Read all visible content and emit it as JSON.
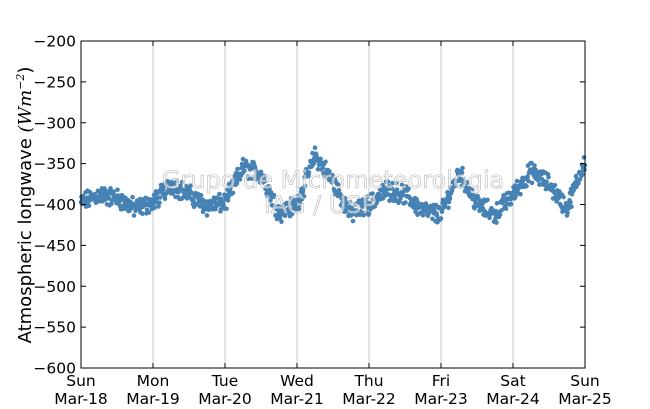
{
  "chart_data": {
    "type": "scatter",
    "ylabel_text": "Atmospheric longwave ",
    "ylabel_unit": "(Wm",
    "ylabel_exp": "−2",
    "ylabel_close": ")",
    "ylim": [
      -600,
      -200
    ],
    "yticks": [
      -200,
      -250,
      -300,
      -350,
      -400,
      -450,
      -500,
      -550,
      -600
    ],
    "ytick_labels": [
      "−200",
      "−250",
      "−300",
      "−350",
      "−400",
      "−450",
      "−500",
      "−550",
      "−600"
    ],
    "xlim_days": [
      0,
      7
    ],
    "xticks": [
      {
        "day": "Sun",
        "date": "Mar-18"
      },
      {
        "day": "Mon",
        "date": "Mar-19"
      },
      {
        "day": "Tue",
        "date": "Mar-20"
      },
      {
        "day": "Wed",
        "date": "Mar-21"
      },
      {
        "day": "Thu",
        "date": "Mar-22"
      },
      {
        "day": "Fri",
        "date": "Mar-23"
      },
      {
        "day": "Sat",
        "date": "Mar-24"
      },
      {
        "day": "Sun",
        "date": "Mar-25"
      }
    ],
    "grid": "vertical",
    "marker_color": "#4682b4",
    "series_trend": {
      "x": [
        0,
        0.25,
        0.5,
        0.75,
        1.0,
        1.25,
        1.5,
        1.75,
        2.0,
        2.25,
        2.5,
        2.75,
        3.0,
        3.25,
        3.5,
        3.75,
        4.0,
        4.25,
        4.5,
        4.75,
        5.0,
        5.25,
        5.5,
        5.75,
        6.0,
        6.25,
        6.5,
        6.75,
        7.0
      ],
      "y": [
        -398,
        -388,
        -392,
        -405,
        -398,
        -375,
        -388,
        -402,
        -398,
        -355,
        -362,
        -410,
        -400,
        -340,
        -372,
        -412,
        -400,
        -382,
        -388,
        -408,
        -412,
        -360,
        -400,
        -412,
        -388,
        -360,
        -375,
        -405,
        -345
      ]
    },
    "watermark_lines": [
      "Grupo de Micrometeorologia",
      "IAG / USP"
    ]
  }
}
